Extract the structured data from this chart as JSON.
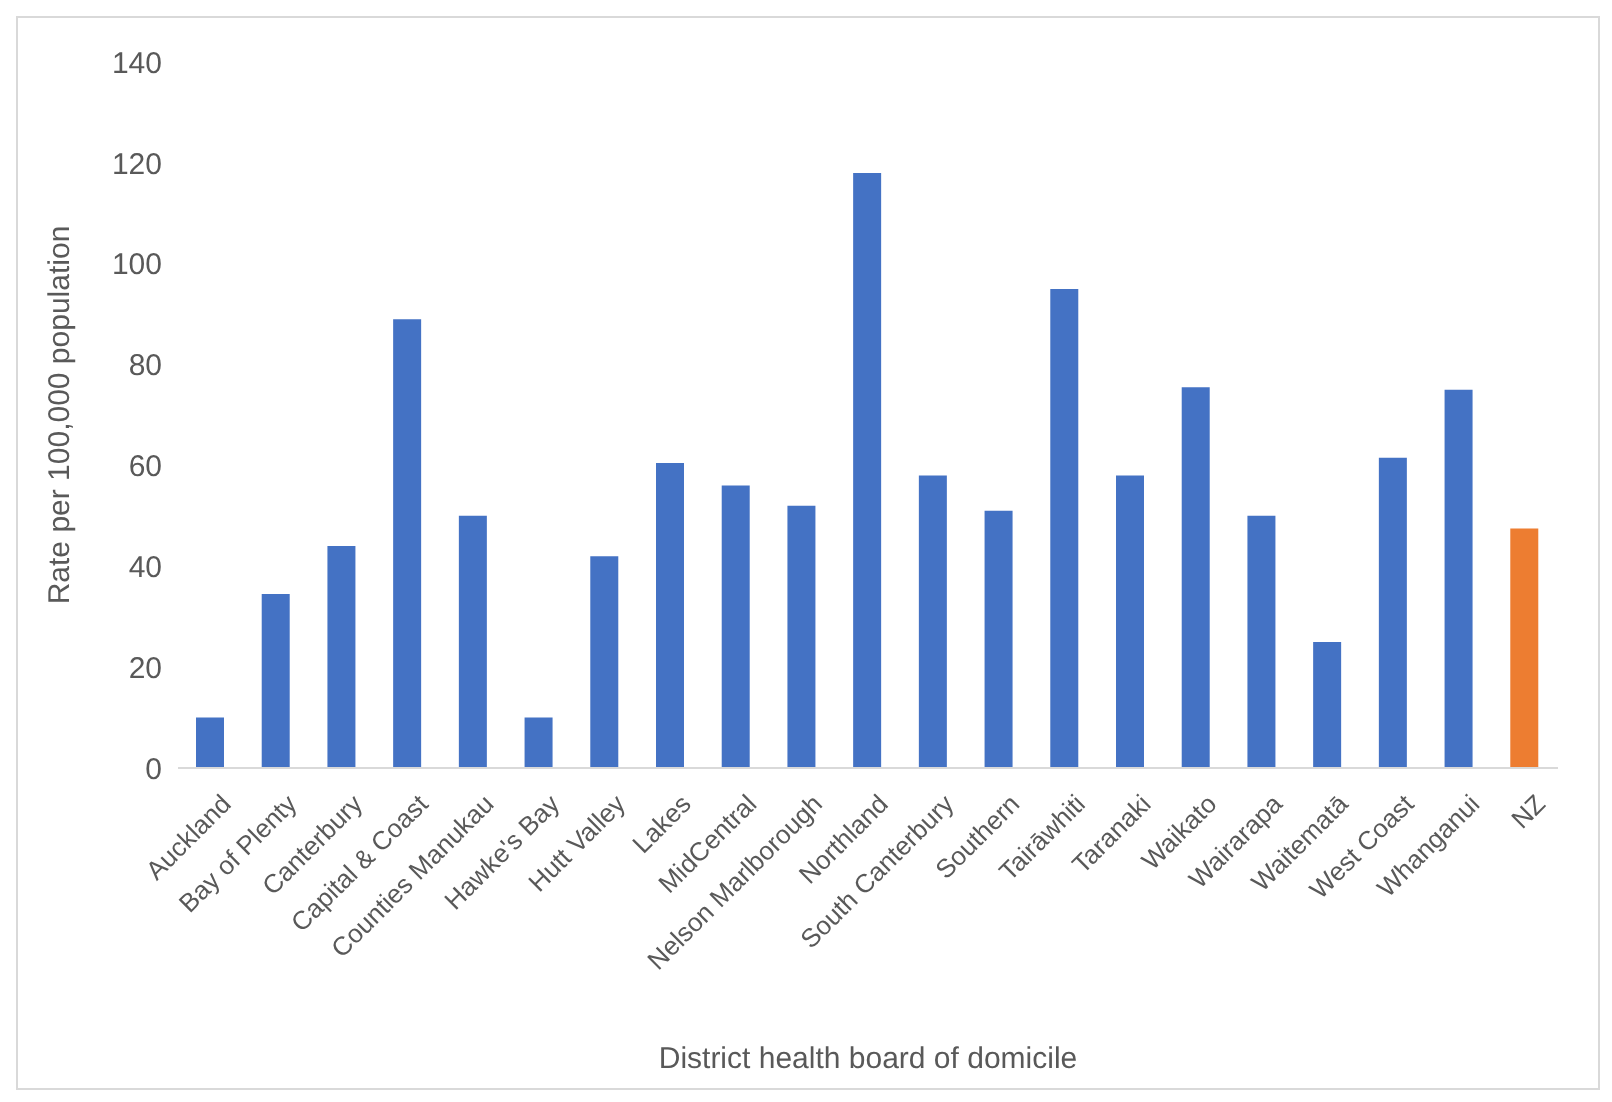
{
  "chart_data": {
    "type": "bar",
    "xlabel": "District health board of domicile",
    "ylabel": "Rate per 100,000 population",
    "categories": [
      "Auckland",
      "Bay of Plenty",
      "Canterbury",
      "Capital & Coast",
      "Counties Manukau",
      "Hawke's Bay",
      "Hutt Valley",
      "Lakes",
      "MidCentral",
      "Nelson Marlborough",
      "Northland",
      "South Canterbury",
      "Southern",
      "Tairāwhiti",
      "Taranaki",
      "Waikato",
      "Wairarapa",
      "Waitematā",
      "West Coast",
      "Whanganui",
      "NZ"
    ],
    "values": [
      10,
      34.5,
      44,
      89,
      50,
      10,
      42,
      60.5,
      56,
      52,
      118,
      58,
      51,
      95,
      58,
      75.5,
      50,
      25,
      61.5,
      75,
      47.5
    ],
    "colors": [
      "#4472c4",
      "#4472c4",
      "#4472c4",
      "#4472c4",
      "#4472c4",
      "#4472c4",
      "#4472c4",
      "#4472c4",
      "#4472c4",
      "#4472c4",
      "#4472c4",
      "#4472c4",
      "#4472c4",
      "#4472c4",
      "#4472c4",
      "#4472c4",
      "#4472c4",
      "#4472c4",
      "#4472c4",
      "#4472c4",
      "#ed7d31"
    ],
    "ylim": [
      0,
      140
    ],
    "yticks": [
      0,
      20,
      40,
      60,
      80,
      100,
      120,
      140
    ],
    "grid": false
  }
}
